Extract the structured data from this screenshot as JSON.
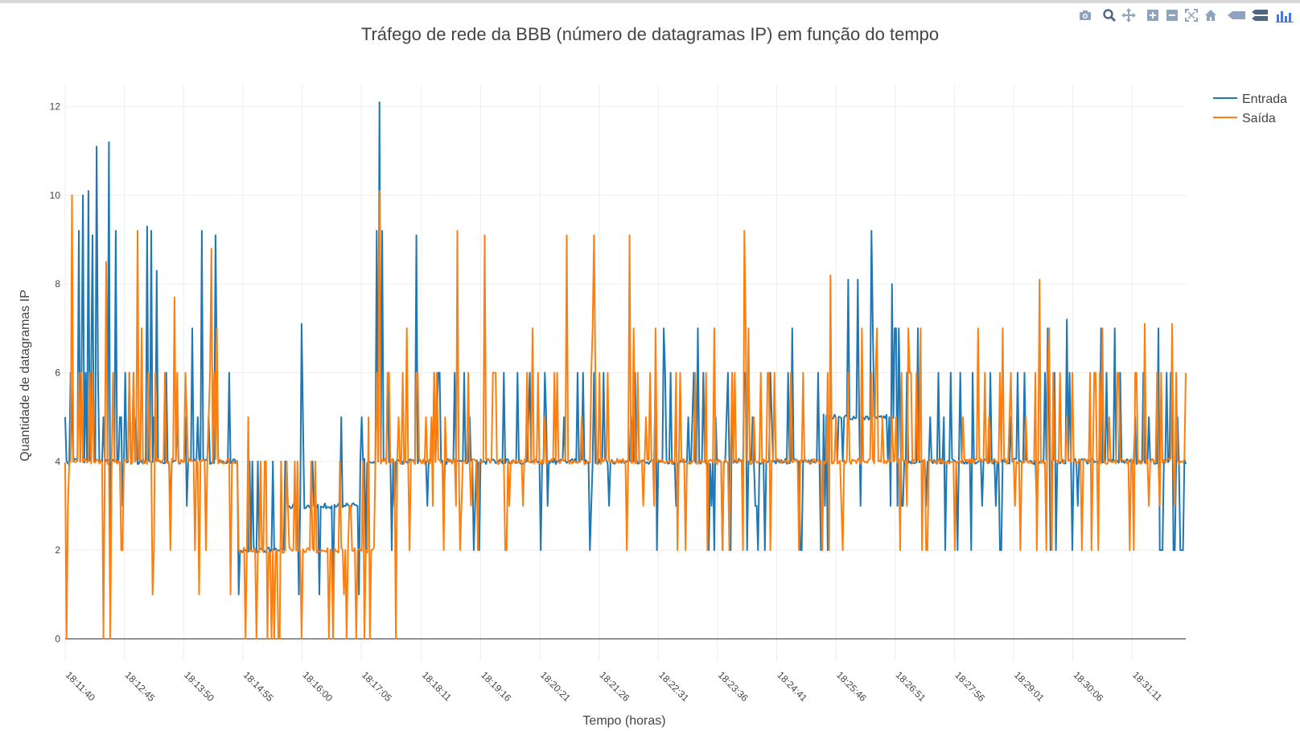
{
  "chart_data": {
    "type": "line",
    "title": "Tráfego de rede da BBB (número de datagramas IP) em função do tempo",
    "xlabel": "Tempo (horas)",
    "ylabel": "Quantidade de datagramas IP",
    "x_tick_labels": [
      "18:11:40",
      "18:12:45",
      "18:13:50",
      "18:14:55",
      "18:16:00",
      "18:17:05",
      "18:18:11",
      "18:19:16",
      "18:20:21",
      "18:21:26",
      "18:22:31",
      "18:23:36",
      "18:24:41",
      "18:25:46",
      "18:26:51",
      "18:27:56",
      "18:29:01",
      "18:30:06",
      "18:31:11"
    ],
    "y_ticks": [
      0,
      2,
      4,
      6,
      8,
      10,
      12
    ],
    "xlim": [
      "18:11:40",
      "18:32:10"
    ],
    "ylim": [
      -0.5,
      12.5
    ],
    "grid": true,
    "legend_position": "top-right",
    "series": [
      {
        "name": "Entrada",
        "color": "#1f77b4",
        "segments": [
          {
            "from": "18:11:40",
            "to": "18:13:00",
            "baseline": 4,
            "range": [
              2,
              10
            ]
          },
          {
            "from": "18:13:00",
            "to": "18:14:50",
            "baseline": 4,
            "range": [
              2,
              9
            ]
          },
          {
            "from": "18:14:50",
            "to": "18:15:40",
            "baseline": 2,
            "range": [
              1,
              3
            ]
          },
          {
            "from": "18:15:40",
            "to": "18:17:05",
            "baseline": 3,
            "range": [
              1,
              6
            ]
          },
          {
            "from": "18:17:05",
            "to": "18:17:45",
            "baseline": 4,
            "range": [
              2,
              12
            ]
          },
          {
            "from": "18:17:45",
            "to": "18:25:30",
            "baseline": 4,
            "range": [
              2,
              9
            ]
          },
          {
            "from": "18:25:30",
            "to": "18:27:00",
            "baseline": 5,
            "range": [
              2,
              9
            ]
          },
          {
            "from": "18:27:00",
            "to": "18:32:10",
            "baseline": 4,
            "range": [
              2,
              7
            ]
          }
        ],
        "peaks": [
          {
            "t": "18:11:55",
            "y": 9.2
          },
          {
            "t": "18:12:00",
            "y": 10
          },
          {
            "t": "18:12:05",
            "y": 10.1
          },
          {
            "t": "18:12:10",
            "y": 9.1
          },
          {
            "t": "18:12:15",
            "y": 11.1
          },
          {
            "t": "18:12:28",
            "y": 11.2
          },
          {
            "t": "18:12:35",
            "y": 9.2
          },
          {
            "t": "18:13:10",
            "y": 9.3
          },
          {
            "t": "18:13:15",
            "y": 9.2
          },
          {
            "t": "18:13:20",
            "y": 8.3
          },
          {
            "t": "18:14:00",
            "y": 7
          },
          {
            "t": "18:14:10",
            "y": 9.2
          },
          {
            "t": "18:14:25",
            "y": 9.1
          },
          {
            "t": "18:16:00",
            "y": 7.1
          },
          {
            "t": "18:17:22",
            "y": 9.2
          },
          {
            "t": "18:17:25",
            "y": 12.1
          },
          {
            "t": "18:17:28",
            "y": 9.2
          },
          {
            "t": "18:18:05",
            "y": 9.1
          },
          {
            "t": "18:26:00",
            "y": 8.1
          },
          {
            "t": "18:26:10",
            "y": 8.1
          },
          {
            "t": "18:26:25",
            "y": 9.2
          },
          {
            "t": "18:30:00",
            "y": 7.2
          }
        ]
      },
      {
        "name": "Saída",
        "color": "#ff7f0e",
        "segments": [
          {
            "from": "18:11:40",
            "to": "18:14:50",
            "baseline": 4,
            "range": [
              0,
              10
            ]
          },
          {
            "from": "18:14:50",
            "to": "18:17:20",
            "baseline": 2,
            "range": [
              0,
              5
            ]
          },
          {
            "from": "18:17:20",
            "to": "18:17:45",
            "baseline": 4,
            "range": [
              0,
              10
            ]
          },
          {
            "from": "18:17:45",
            "to": "18:25:00",
            "baseline": 4,
            "range": [
              2,
              9
            ]
          },
          {
            "from": "18:25:00",
            "to": "18:32:10",
            "baseline": 4,
            "range": [
              2,
              8
            ]
          }
        ],
        "peaks": [
          {
            "t": "18:11:48",
            "y": 10
          },
          {
            "t": "18:12:25",
            "y": 8.5
          },
          {
            "t": "18:13:00",
            "y": 9.2
          },
          {
            "t": "18:13:40",
            "y": 7.7
          },
          {
            "t": "18:14:20",
            "y": 8.8
          },
          {
            "t": "18:17:25",
            "y": 10.1
          },
          {
            "t": "18:18:50",
            "y": 9.2
          },
          {
            "t": "18:19:20",
            "y": 9.1
          },
          {
            "t": "18:20:50",
            "y": 9.1
          },
          {
            "t": "18:21:20",
            "y": 9.1
          },
          {
            "t": "18:22:00",
            "y": 9.1
          },
          {
            "t": "18:24:05",
            "y": 9.2
          },
          {
            "t": "18:25:40",
            "y": 8.2
          },
          {
            "t": "18:29:30",
            "y": 8.1
          },
          {
            "t": "18:31:25",
            "y": 7.1
          },
          {
            "t": "18:31:55",
            "y": 7.1
          }
        ],
        "dips_to_zero": [
          {
            "t": "18:11:42",
            "y": 0
          },
          {
            "t": "18:12:30",
            "y": 0
          },
          {
            "t": "18:14:58",
            "y": 0
          },
          {
            "t": "18:15:10",
            "y": 0
          },
          {
            "t": "18:15:30",
            "y": 0
          },
          {
            "t": "18:16:00",
            "y": 0
          },
          {
            "t": "18:16:30",
            "y": 0
          },
          {
            "t": "18:17:00",
            "y": 0
          },
          {
            "t": "18:17:15",
            "y": 0
          }
        ]
      }
    ]
  },
  "modebar": {
    "icons": [
      "camera-icon",
      "zoom-icon",
      "pan-icon",
      "zoom-in-icon",
      "zoom-out-icon",
      "autoscale-icon",
      "reset-axes-icon",
      "hover-closest-icon",
      "hover-compare-icon",
      "plotly-logo-icon"
    ],
    "icon_color": "#8ea3bd"
  }
}
